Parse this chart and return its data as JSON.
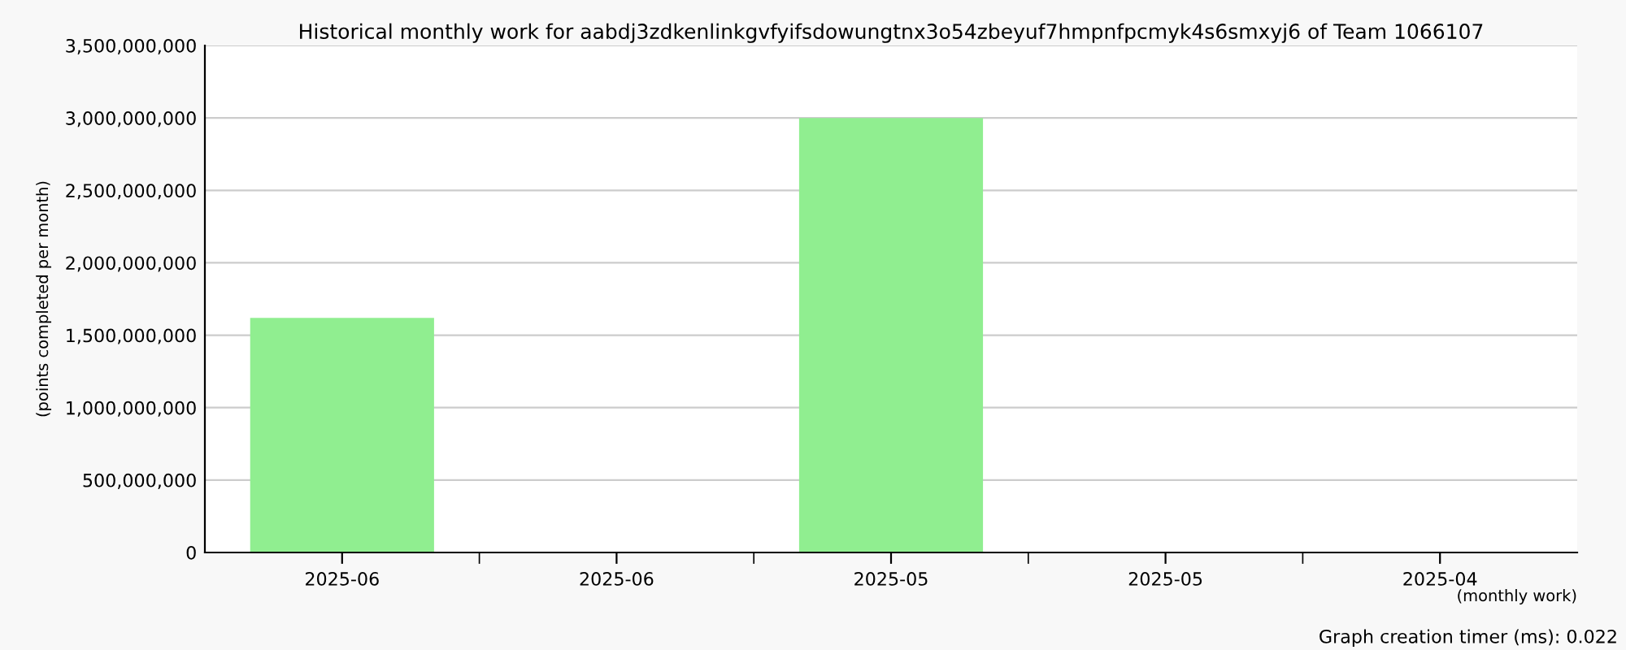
{
  "chart_data": {
    "type": "bar",
    "title": "Historical monthly work for aabdj3zdkenlinkgvfyifsdowungtnx3o54zbeyuf7hmpnfpcmyk4s6smxyj6 of Team 1066107",
    "categories": [
      "2025-06",
      "2025-06",
      "2025-05",
      "2025-05",
      "2025-04"
    ],
    "values": [
      1620000000,
      0,
      3000000000,
      0,
      0
    ],
    "color": "#90ee90",
    "ylabel": "(points completed per month)",
    "xlabel": "(monthly work)",
    "ylim": [
      0,
      3500000000
    ],
    "yticks": [
      {
        "value": 0,
        "label": "0"
      },
      {
        "value": 500000000,
        "label": "500,000,000"
      },
      {
        "value": 1000000000,
        "label": "1,000,000,000"
      },
      {
        "value": 1500000000,
        "label": "1,500,000,000"
      },
      {
        "value": 2000000000,
        "label": "2,000,000,000"
      },
      {
        "value": 2500000000,
        "label": "2,500,000,000"
      },
      {
        "value": 3000000000,
        "label": "3,000,000,000"
      },
      {
        "value": 3500000000,
        "label": "3,500,000,000"
      }
    ],
    "grid": "y",
    "annotations": [
      "Graph creation timer (ms): 0.022"
    ]
  }
}
